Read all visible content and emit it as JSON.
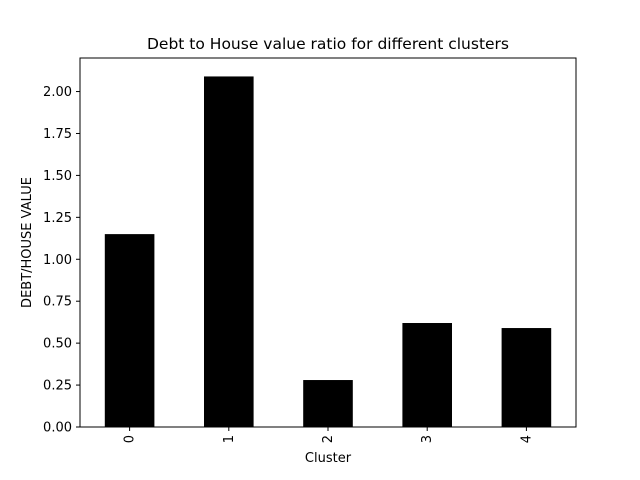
{
  "chart_data": {
    "type": "bar",
    "title": "Debt to House value ratio for different clusters",
    "xlabel": "Cluster",
    "ylabel": "DEBT/HOUSE VALUE",
    "categories": [
      "0",
      "1",
      "2",
      "3",
      "4"
    ],
    "values": [
      1.15,
      2.09,
      0.28,
      0.62,
      0.59
    ],
    "ylim": [
      0,
      2.2
    ],
    "yticks": [
      0.0,
      0.25,
      0.5,
      0.75,
      1.0,
      1.25,
      1.5,
      1.75,
      2.0
    ],
    "ytick_labels": [
      "0.00",
      "0.25",
      "0.50",
      "0.75",
      "1.00",
      "1.25",
      "1.50",
      "1.75",
      "2.00"
    ],
    "bar_color": "#000000",
    "grid": false,
    "legend": "none"
  }
}
